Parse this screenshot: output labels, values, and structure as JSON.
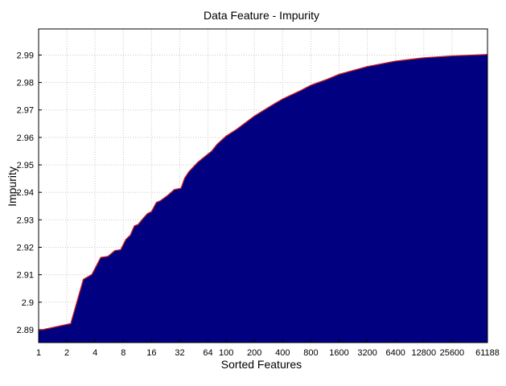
{
  "chart_data": {
    "type": "area",
    "title": "Data Feature - Impurity",
    "xlabel": "Sorted Features",
    "ylabel": "Impurity",
    "x_scale": "log2",
    "xlim": [
      1,
      61188
    ],
    "ylim": [
      2.8853,
      2.9995
    ],
    "grid": true,
    "fill_color": "#000080",
    "line_color": "#cc1f1f",
    "x_ticks": [
      1,
      2,
      4,
      8,
      16,
      32,
      64,
      100,
      200,
      400,
      800,
      1600,
      3200,
      6400,
      12800,
      25600,
      61188
    ],
    "y_ticks": [
      2.89,
      2.9,
      2.91,
      2.92,
      2.93,
      2.94,
      2.95,
      2.96,
      2.97,
      2.98,
      2.99
    ],
    "y_tick_labels": [
      "2.89",
      "2.9",
      "2.91",
      "2.92",
      "2.93",
      "2.94",
      "2.95",
      "2.96",
      "2.97",
      "2.98",
      "2.99"
    ],
    "series": [
      {
        "x": [
          1,
          2.2,
          3,
          3.7,
          4.6,
          5.5,
          6.5,
          7.5,
          8.5,
          9.5,
          10.5,
          11.5,
          13,
          14.5,
          16,
          18,
          20,
          24,
          28,
          33,
          36,
          40,
          50,
          60,
          70,
          80,
          100,
          130,
          200,
          300,
          400,
          600,
          800,
          1200,
          1600,
          3200,
          6400,
          12800,
          25600,
          61188
        ],
        "y": [
          2.8897,
          2.8922,
          2.9083,
          2.9101,
          2.9163,
          2.9167,
          2.9188,
          2.9191,
          2.9228,
          2.9244,
          2.9278,
          2.9283,
          2.9305,
          2.9323,
          2.933,
          2.9363,
          2.937,
          2.939,
          2.941,
          2.9415,
          2.9451,
          2.9475,
          2.951,
          2.9532,
          2.955,
          2.9575,
          2.9605,
          2.963,
          2.9678,
          2.9715,
          2.974,
          2.9768,
          2.979,
          2.9812,
          2.983,
          2.9858,
          2.9878,
          2.989,
          2.9897,
          2.9902
        ]
      }
    ]
  }
}
